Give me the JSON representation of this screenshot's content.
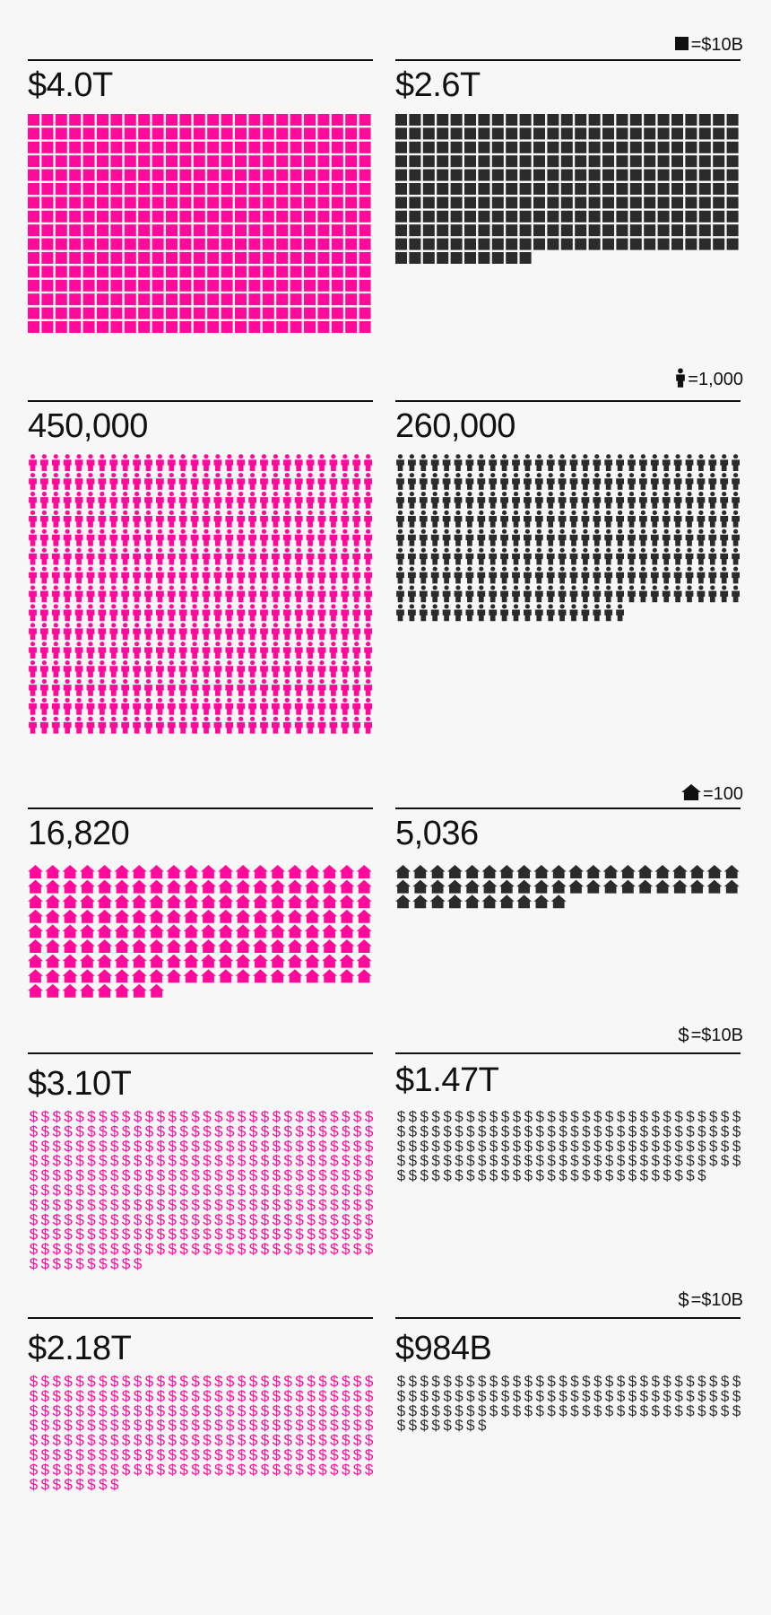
{
  "colors": {
    "pink": "#ff0a9a",
    "dark": "#2b2b2b"
  },
  "chart_data": [
    {
      "type": "pictogram",
      "unit_icon": "square-icon",
      "legend": "=$10B",
      "unit_value": 10000000000,
      "panels": [
        {
          "label": "$4.0T",
          "icons": 400,
          "color": "pink"
        },
        {
          "label": "$2.6T",
          "icons": 260,
          "color": "dark"
        }
      ]
    },
    {
      "type": "pictogram",
      "unit_icon": "person-icon",
      "legend": "=1,000",
      "unit_value": 1000,
      "panels": [
        {
          "label": "450,000",
          "icons": 450,
          "color": "pink"
        },
        {
          "label": "260,000",
          "icons": 260,
          "color": "dark"
        }
      ]
    },
    {
      "type": "pictogram",
      "unit_icon": "house-icon",
      "legend": "=100",
      "unit_value": 100,
      "panels": [
        {
          "label": "16,820",
          "icons": 168,
          "color": "pink"
        },
        {
          "label": "5,036",
          "icons": 50,
          "color": "dark"
        }
      ]
    },
    {
      "type": "pictogram",
      "unit_icon": "dollar-icon",
      "legend": "=$10B",
      "unit_value": 10000000000,
      "panels": [
        {
          "label": "$3.10T",
          "icons": 310,
          "color": "pink"
        },
        {
          "label": "$1.47T",
          "icons": 147,
          "color": "dark"
        }
      ]
    },
    {
      "type": "pictogram",
      "unit_icon": "dollar-icon",
      "legend": "=$10B",
      "unit_value": 10000000000,
      "panels": [
        {
          "label": "$2.18T",
          "icons": 218,
          "color": "pink"
        },
        {
          "label": "$984B",
          "icons": 98,
          "color": "dark"
        }
      ]
    }
  ]
}
